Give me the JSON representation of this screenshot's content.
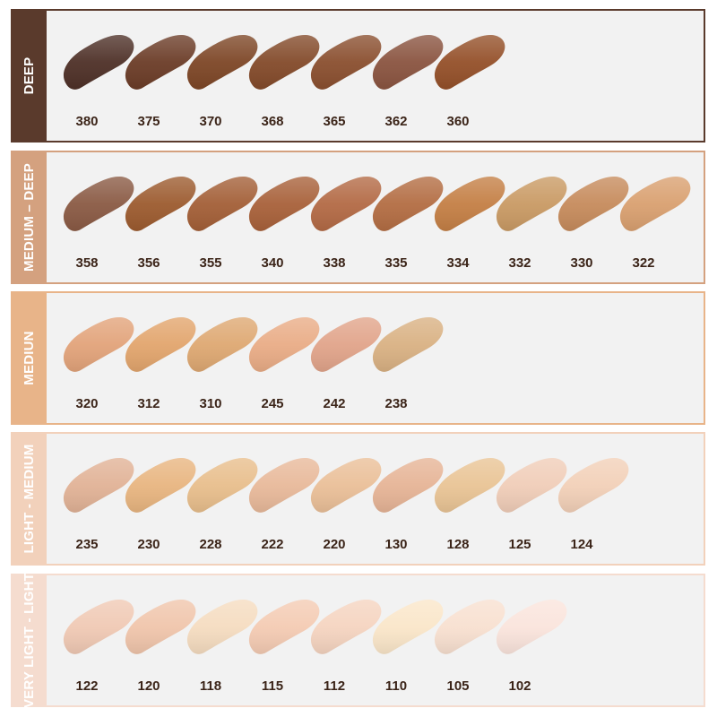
{
  "groups": [
    {
      "label": "DEEP",
      "color": "#5a3a2c",
      "shades": [
        {
          "code": "380",
          "color": "#4e3027"
        },
        {
          "code": "375",
          "color": "#6b3c27"
        },
        {
          "code": "370",
          "color": "#7d4626"
        },
        {
          "code": "368",
          "color": "#834a2a"
        },
        {
          "code": "365",
          "color": "#8a4f2f"
        },
        {
          "code": "362",
          "color": "#8a5440"
        },
        {
          "code": "360",
          "color": "#945029"
        }
      ]
    },
    {
      "label": "MEDIUM – DEEP",
      "color": "#d4a17f",
      "shades": [
        {
          "code": "358",
          "color": "#8a5a44"
        },
        {
          "code": "356",
          "color": "#9c5b2f"
        },
        {
          "code": "355",
          "color": "#a35f37"
        },
        {
          "code": "340",
          "color": "#a8613a"
        },
        {
          "code": "338",
          "color": "#b36a45"
        },
        {
          "code": "335",
          "color": "#b36d43"
        },
        {
          "code": "334",
          "color": "#c47f45"
        },
        {
          "code": "332",
          "color": "#c99a64"
        },
        {
          "code": "330",
          "color": "#c68b5c"
        },
        {
          "code": "322",
          "color": "#d9a070"
        }
      ]
    },
    {
      "label": "MEDIUN",
      "color": "#e8b489",
      "shades": [
        {
          "code": "320",
          "color": "#e2a37a"
        },
        {
          "code": "312",
          "color": "#e2a56d"
        },
        {
          "code": "310",
          "color": "#dea872"
        },
        {
          "code": "245",
          "color": "#e9ac86"
        },
        {
          "code": "242",
          "color": "#e1a48a"
        },
        {
          "code": "238",
          "color": "#d9b183"
        }
      ]
    },
    {
      "label": "LIGHT - MEDIUM",
      "color": "#f2d1bb",
      "shades": [
        {
          "code": "235",
          "color": "#e1b296"
        },
        {
          "code": "230",
          "color": "#e8b580"
        },
        {
          "code": "228",
          "color": "#e8be8c"
        },
        {
          "code": "222",
          "color": "#e8b99a"
        },
        {
          "code": "220",
          "color": "#eabf98"
        },
        {
          "code": "130",
          "color": "#e6b496"
        },
        {
          "code": "128",
          "color": "#e9c495"
        },
        {
          "code": "125",
          "color": "#f0cdb8"
        },
        {
          "code": "124",
          "color": "#f2d0b8"
        }
      ]
    },
    {
      "label": "VERY LIGHT - LIGHT",
      "color": "#f5dccf",
      "shades": [
        {
          "code": "122",
          "color": "#f0c9b4"
        },
        {
          "code": "120",
          "color": "#f0c5ab"
        },
        {
          "code": "118",
          "color": "#f5dcc0"
        },
        {
          "code": "115",
          "color": "#f4cbb3"
        },
        {
          "code": "112",
          "color": "#f5d4c0"
        },
        {
          "code": "110",
          "color": "#fae6c9"
        },
        {
          "code": "105",
          "color": "#f8e0d0"
        },
        {
          "code": "102",
          "color": "#fae4dc"
        }
      ]
    }
  ]
}
